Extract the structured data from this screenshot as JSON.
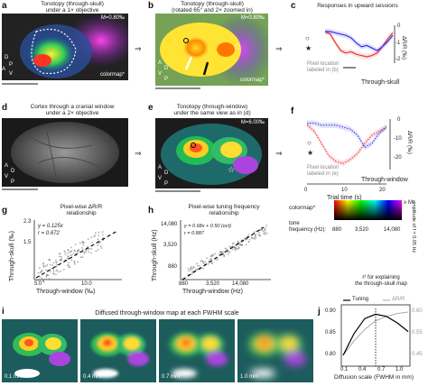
{
  "panels": {
    "a": {
      "label": "a",
      "title_line1": "Tonotopy (through-skull)",
      "title_line2": "under a 1× objective",
      "m_label": "M=0.80‰",
      "colormap": "colormap*",
      "orient": [
        "A",
        "P",
        "D",
        "V"
      ]
    },
    "b": {
      "label": "b",
      "title_line1": "Tonotopy (through-skull)",
      "title_line2": "(rotated 65° and 2× zoomed in)",
      "m_label": "M=0.80‰",
      "colormap": "colormap*",
      "orient": [
        "A",
        "P",
        "D",
        "V"
      ]
    },
    "c": {
      "label": "c",
      "title": "Responses in upward sessions",
      "pixel_note_line1": "Pixel location",
      "pixel_note_line2": "labeled in (b)",
      "caption": "Through-skull",
      "ylabel": "ΔR/R (‰)",
      "yticks": [
        "0",
        "-1",
        "-2"
      ]
    },
    "d": {
      "label": "d",
      "title_line1": "Cortex through a cranial window",
      "title_line2": "under a 2× objective",
      "orient": [
        "A",
        "P",
        "D",
        "V"
      ]
    },
    "e": {
      "label": "e",
      "title_line1": "Tonotopy (through-window)",
      "title_line2": "under the same view as in (d)",
      "m_label": "M=6.00‰",
      "orient": [
        "A",
        "P",
        "D",
        "V"
      ]
    },
    "f": {
      "label": "f",
      "pixel_note_line1": "Pixel location",
      "pixel_note_line2": "labeled in (e)",
      "caption": "Through-window",
      "xlabel": "Trial time (s)",
      "xticks": [
        "0",
        "10",
        "20"
      ],
      "ylabel": "ΔR/R (‰)",
      "yticks": [
        "0",
        "-10",
        "-20"
      ]
    },
    "colorbar": {
      "label": "colormap*",
      "tone_label_line1": "tone",
      "tone_label_line2": "frequency (Hz):",
      "ticks": [
        "880",
        "3,520",
        "14,080"
      ],
      "right_label": "≥ M",
      "side_line1": "amplitude",
      "side_line2": "of f = 0.05 Hz"
    },
    "g": {
      "label": "g",
      "title_line1": "Pixel-wise ΔR/R",
      "title_line2": "relationship",
      "eq": "y = 0.125x",
      "r": "r = 0.672",
      "xlabel": "Through-window (‰)",
      "ylabel": "Through-skull (‰)",
      "xticks": [
        "5.0",
        "10.0"
      ],
      "yticks": [
        "2.3",
        "1.5"
      ]
    },
    "h": {
      "label": "h",
      "title_line1": "Pixel-wise tuning frequency",
      "title_line2": "relationship",
      "eq": "y = 0.68x + 0.50 (oct)",
      "r": "r = 0.887",
      "xlabel": "Through-window (Hz)",
      "ylabel": "Through-skull (Hz)",
      "xticks": [
        "880",
        "3,520",
        "14,080"
      ],
      "yticks": [
        "14,080",
        "3,520",
        "880"
      ]
    },
    "i": {
      "label": "i",
      "title": "Diffused through-window map at each FWHM scale",
      "scales": [
        "0.1 mm",
        "0.4 mm",
        "0.7 mm",
        "1.0 mm"
      ]
    },
    "j": {
      "label": "j",
      "title_line1": "r² for explaining",
      "title_line2": "the through-skull map",
      "legend_tuning": "Tuning",
      "legend_dr": "ΔR/R",
      "xlabel": "Diffusion scale (FWHM in mm)",
      "xticks": [
        "0.1",
        "0.4",
        "0.7",
        "1.0"
      ],
      "yticks_left": [
        "0.90",
        "0.85",
        "0.80"
      ],
      "yticks_right": [
        "0.60",
        "0.55",
        "0.45"
      ]
    }
  },
  "chart_data": [
    {
      "type": "line",
      "panel": "c",
      "title": "Responses in upward sessions",
      "ylabel": "ΔR/R (‰)",
      "ylim": [
        -2.5,
        0.5
      ],
      "series": [
        {
          "values": [
            0,
            -0.2,
            -0.9,
            -1.5,
            -1.7,
            -1.6,
            -1.8,
            -1.9,
            -2.0,
            -1.9,
            -1.7,
            -1.2,
            -0.6,
            -0.1
          ]
        },
        {
          "values": [
            0,
            0,
            -0.1,
            -0.2,
            -0.3,
            -0.5,
            -0.9,
            -1.2,
            -1.1,
            -1.3,
            -1.5,
            -1.2,
            -0.8,
            -0.3
          ]
        }
      ]
    },
    {
      "type": "line",
      "panel": "f",
      "xlabel": "Trial time (s)",
      "ylabel": "ΔR/R (‰)",
      "xlim": [
        0,
        20
      ],
      "ylim": [
        -25,
        0
      ],
      "series": [
        {
          "values": [
            -3,
            -6,
            -12,
            -18,
            -21,
            -22,
            -20,
            -17,
            -12,
            -8,
            -6,
            -4
          ]
        },
        {
          "values": [
            -2,
            -2,
            -3,
            -3,
            -3,
            -4,
            -5,
            -8,
            -14,
            -12,
            -7,
            -4
          ]
        }
      ]
    },
    {
      "type": "scatter",
      "panel": "g",
      "xlabel": "Through-window (‰)",
      "ylabel": "Through-skull (‰)",
      "fit": {
        "slope": 0.125,
        "r": 0.672
      }
    },
    {
      "type": "scatter",
      "panel": "h",
      "xlabel": "Through-window (Hz)",
      "ylabel": "Through-skull (Hz)",
      "fit": {
        "slope": 0.68,
        "intercept_oct": 0.5,
        "r": 0.887
      }
    },
    {
      "type": "line",
      "panel": "j",
      "xlabel": "Diffusion scale (FWHM in mm)",
      "x": [
        0.1,
        0.25,
        0.4,
        0.55,
        0.7,
        0.85,
        1.0
      ],
      "series": [
        {
          "name": "Tuning",
          "values": [
            0.8,
            0.85,
            0.885,
            0.895,
            0.89,
            0.875,
            0.855
          ]
        },
        {
          "name": "ΔR/R",
          "values": [
            0.45,
            0.5,
            0.54,
            0.57,
            0.585,
            0.595,
            0.6
          ]
        }
      ]
    }
  ]
}
